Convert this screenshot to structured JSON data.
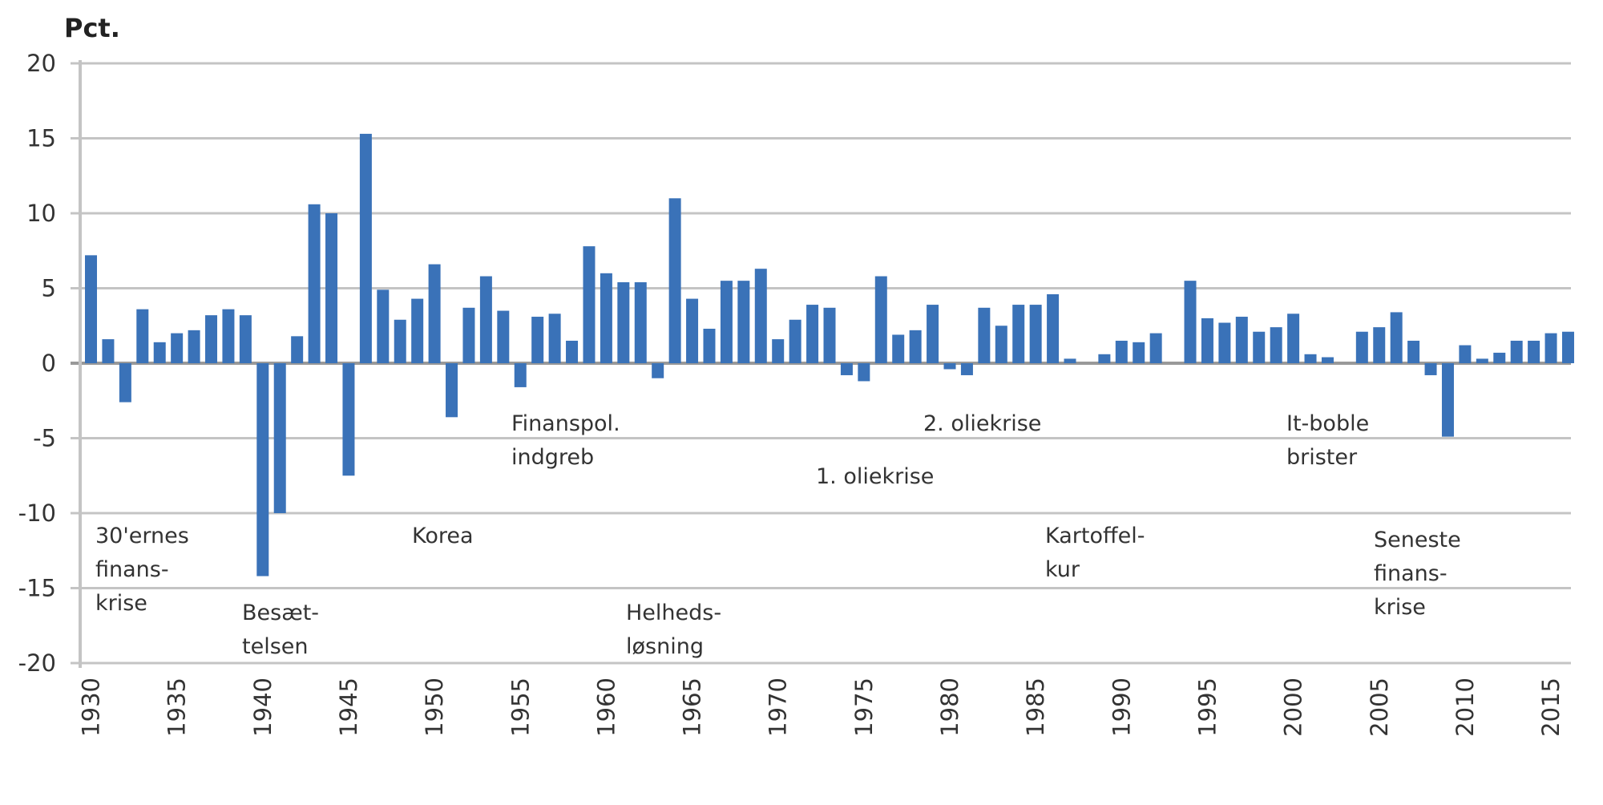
{
  "chart_data": {
    "type": "bar",
    "ylabel": "Pct.",
    "ylim": [
      -20,
      20
    ],
    "yticks": [
      20,
      15,
      10,
      5,
      0,
      -5,
      -10,
      -15,
      -20
    ],
    "xticks": [
      1930,
      1935,
      1940,
      1945,
      1950,
      1955,
      1960,
      1965,
      1970,
      1975,
      1980,
      1985,
      1990,
      1995,
      2000,
      2005,
      2010,
      2015
    ],
    "grid": true,
    "bar_color": "#3a72b8",
    "x": [
      1930,
      1931,
      1932,
      1933,
      1934,
      1935,
      1936,
      1937,
      1938,
      1939,
      1940,
      1941,
      1942,
      1943,
      1944,
      1945,
      1946,
      1947,
      1948,
      1949,
      1950,
      1951,
      1952,
      1953,
      1954,
      1955,
      1956,
      1957,
      1958,
      1959,
      1960,
      1961,
      1962,
      1963,
      1964,
      1965,
      1966,
      1967,
      1968,
      1969,
      1970,
      1971,
      1972,
      1973,
      1974,
      1975,
      1976,
      1977,
      1978,
      1979,
      1980,
      1981,
      1982,
      1983,
      1984,
      1985,
      1986,
      1987,
      1988,
      1989,
      1990,
      1991,
      1992,
      1993,
      1994,
      1995,
      1996,
      1997,
      1998,
      1999,
      2000,
      2001,
      2002,
      2003,
      2004,
      2005,
      2006,
      2007,
      2008,
      2009,
      2010,
      2011,
      2012,
      2013,
      2014,
      2015,
      2016
    ],
    "values": [
      7.2,
      1.6,
      -2.6,
      3.6,
      1.4,
      2.0,
      2.2,
      3.2,
      3.6,
      3.2,
      -14.2,
      -10.0,
      1.8,
      10.6,
      10.0,
      -7.5,
      15.3,
      4.9,
      2.9,
      4.3,
      6.6,
      -3.6,
      3.7,
      5.8,
      3.5,
      -1.6,
      3.1,
      3.3,
      1.5,
      7.8,
      6.0,
      5.4,
      5.4,
      -1.0,
      11.0,
      4.3,
      2.3,
      5.5,
      5.5,
      6.3,
      1.6,
      2.9,
      3.9,
      3.7,
      -0.8,
      -1.2,
      5.8,
      1.9,
      2.2,
      3.9,
      -0.4,
      -0.8,
      3.7,
      2.5,
      3.9,
      3.9,
      4.6,
      0.3,
      0.0,
      0.6,
      1.5,
      1.4,
      2.0,
      0.0,
      5.5,
      3.0,
      2.7,
      3.1,
      2.1,
      2.4,
      3.3,
      0.6,
      0.4,
      0.0,
      2.1,
      2.4,
      3.4,
      1.5,
      -0.8,
      -4.9,
      1.2,
      0.3,
      0.7,
      1.5,
      1.5,
      2.0,
      2.1
    ],
    "annotations": [
      {
        "lines": [
          "30'ernes",
          "finans-",
          "krise"
        ]
      },
      {
        "lines": [
          "Besæt-",
          "telsen"
        ]
      },
      {
        "lines": [
          "Korea"
        ]
      },
      {
        "lines": [
          "Finanspol.",
          "indgreb"
        ]
      },
      {
        "lines": [
          "Helheds-",
          "løsning"
        ]
      },
      {
        "lines": [
          "1. oliekrise"
        ]
      },
      {
        "lines": [
          "2. oliekrise"
        ]
      },
      {
        "lines": [
          "Kartoffel-",
          "kur"
        ]
      },
      {
        "lines": [
          "It-boble",
          "brister"
        ]
      },
      {
        "lines": [
          "Seneste",
          "finans-",
          "krise"
        ]
      }
    ]
  }
}
